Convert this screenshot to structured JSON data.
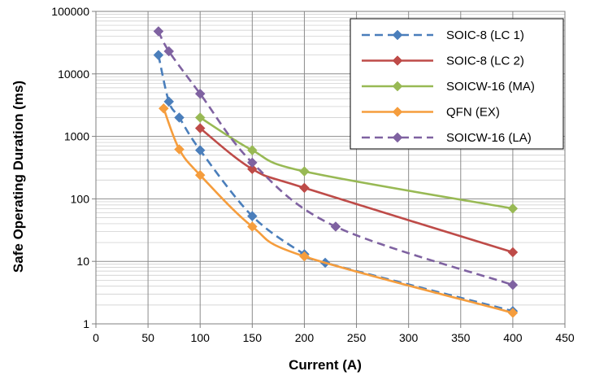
{
  "chart_data": {
    "type": "line",
    "title": "",
    "xlabel": "Current (A)",
    "ylabel": "Safe Operating Duration (ms)",
    "xlim": [
      0,
      450
    ],
    "ylim": [
      1,
      100000
    ],
    "y_scale": "log",
    "x_ticks": [
      "0",
      "50",
      "100",
      "150",
      "200",
      "250",
      "300",
      "350",
      "400",
      "450"
    ],
    "y_ticks": [
      "1",
      "10",
      "100",
      "1000",
      "10000",
      "100000"
    ],
    "grid": true,
    "legend_position": "top-right",
    "series": [
      {
        "name": "SOIC-8 (LC 1)",
        "color": "#4a7ebb",
        "dashed": true,
        "points": [
          [
            60,
            20000
          ],
          [
            70,
            3600
          ],
          [
            80,
            2000
          ],
          [
            100,
            600
          ],
          [
            150,
            53
          ],
          [
            200,
            13
          ],
          [
            220,
            9.5
          ],
          [
            400,
            1.6
          ]
        ]
      },
      {
        "name": "SOIC-8 (LC 2)",
        "color": "#be4b48",
        "dashed": false,
        "points": [
          [
            100,
            1350
          ],
          [
            150,
            300
          ],
          [
            200,
            150
          ],
          [
            400,
            14
          ]
        ]
      },
      {
        "name": "SOICW-16 (MA)",
        "color": "#98b954",
        "dashed": false,
        "points": [
          [
            100,
            2000
          ],
          [
            150,
            600
          ],
          [
            200,
            275
          ],
          [
            400,
            70
          ]
        ]
      },
      {
        "name": "QFN (EX)",
        "color": "#f59d3d",
        "dashed": false,
        "points": [
          [
            65,
            2800
          ],
          [
            80,
            620
          ],
          [
            100,
            240
          ],
          [
            150,
            36
          ],
          [
            200,
            12
          ],
          [
            400,
            1.5
          ]
        ]
      },
      {
        "name": "SOICW-16 (LA)",
        "color": "#7f62a1",
        "dashed": true,
        "points": [
          [
            60,
            48000
          ],
          [
            70,
            23000
          ],
          [
            100,
            4800
          ],
          [
            150,
            380
          ],
          [
            230,
            36
          ],
          [
            400,
            4.2
          ]
        ]
      }
    ]
  }
}
